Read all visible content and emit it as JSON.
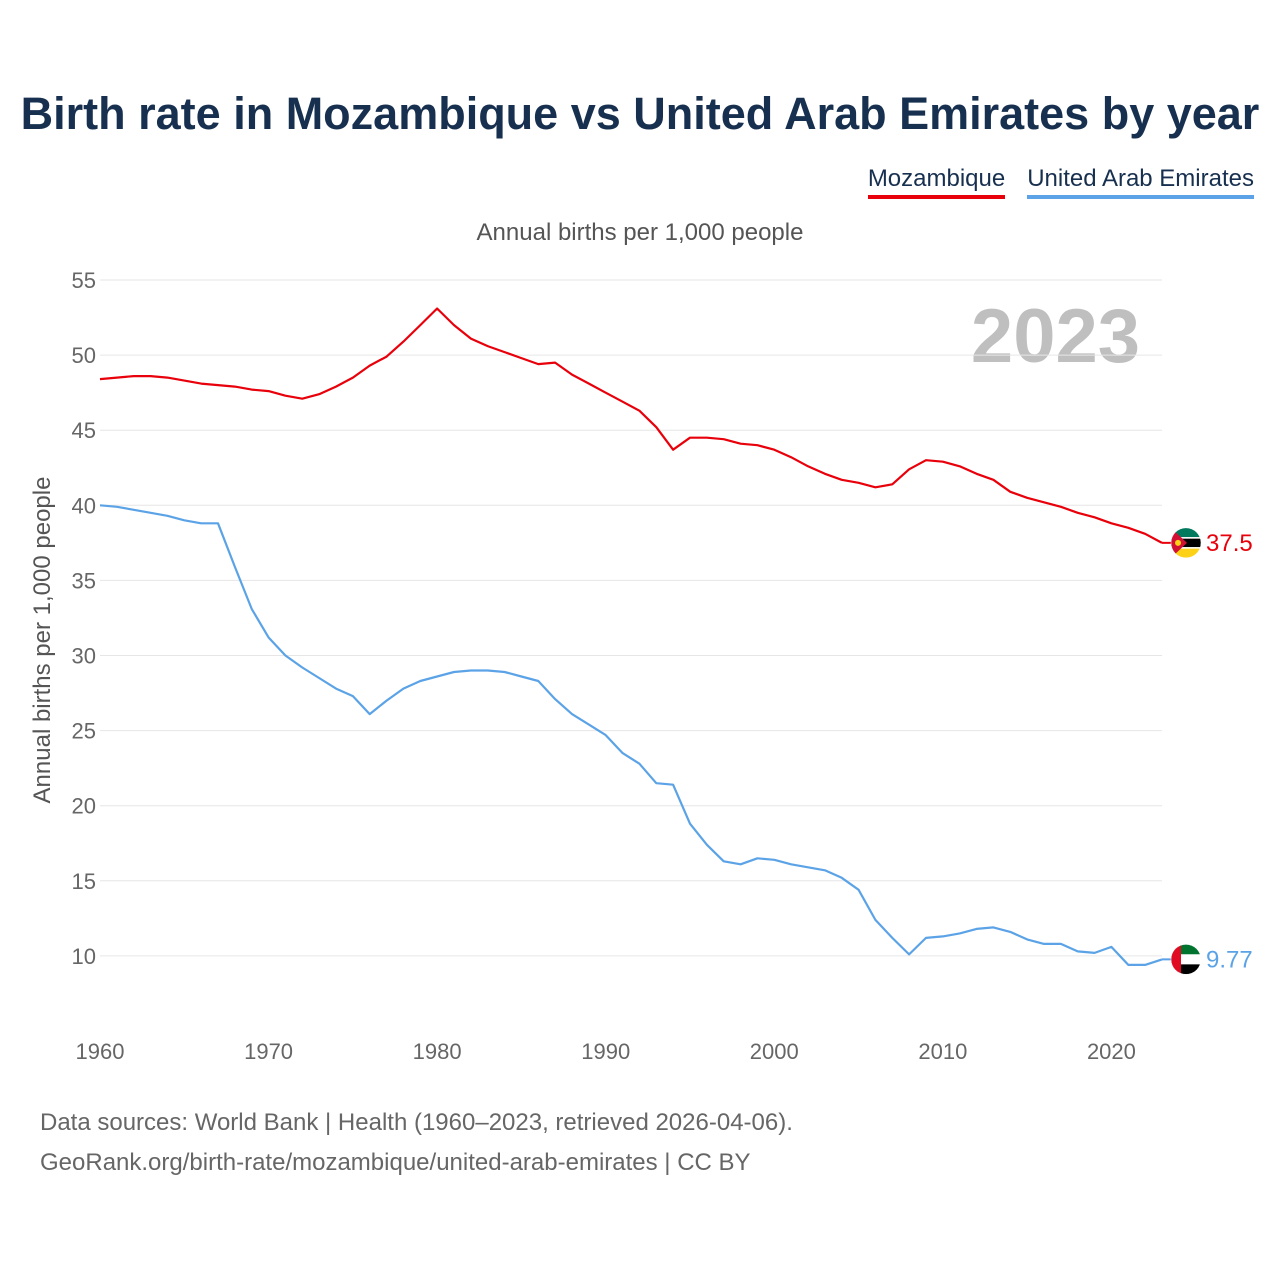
{
  "title": "Birth rate in Mozambique vs United Arab Emirates by year",
  "legend": [
    {
      "label": "Mozambique",
      "color": "#e8000b"
    },
    {
      "label": "United Arab Emirates",
      "color": "#5ba3e6"
    }
  ],
  "footer": {
    "line1": "Data sources: World Bank | Health (1960–2023, retrieved 2026-04-06).",
    "line2": "GeoRank.org/birth-rate/mozambique/united-arab-emirates | CC BY"
  },
  "chart_data": {
    "type": "line",
    "title": "Birth rate in Mozambique vs United Arab Emirates by year",
    "subtitle": "Annual births per 1,000 people",
    "ylabel": "Annual births per 1,000 people",
    "xlabel": "",
    "year_label": "2023",
    "xlim": [
      1960,
      2023
    ],
    "ylim": [
      5.6,
      55
    ],
    "yticks": [
      10,
      15,
      20,
      25,
      30,
      35,
      40,
      45,
      50,
      55
    ],
    "xticks": [
      1960,
      1970,
      1980,
      1990,
      2000,
      2010,
      2020
    ],
    "grid": true,
    "legend_position": "top-right",
    "x": [
      1960,
      1961,
      1962,
      1963,
      1964,
      1965,
      1966,
      1967,
      1968,
      1969,
      1970,
      1971,
      1972,
      1973,
      1974,
      1975,
      1976,
      1977,
      1978,
      1979,
      1980,
      1981,
      1982,
      1983,
      1984,
      1985,
      1986,
      1987,
      1988,
      1989,
      1990,
      1991,
      1992,
      1993,
      1994,
      1995,
      1996,
      1997,
      1998,
      1999,
      2000,
      2001,
      2002,
      2003,
      2004,
      2005,
      2006,
      2007,
      2008,
      2009,
      2010,
      2011,
      2012,
      2013,
      2014,
      2015,
      2016,
      2017,
      2018,
      2019,
      2020,
      2021,
      2022,
      2023
    ],
    "series": [
      {
        "name": "Mozambique",
        "color": "#e8000b",
        "end_label": "37.5",
        "values": [
          48.4,
          48.5,
          48.6,
          48.6,
          48.5,
          48.3,
          48.1,
          48.0,
          47.9,
          47.7,
          47.6,
          47.3,
          47.1,
          47.4,
          47.9,
          48.5,
          49.3,
          49.9,
          50.9,
          52.0,
          53.1,
          52.0,
          51.1,
          50.6,
          50.2,
          49.8,
          49.4,
          49.5,
          48.7,
          48.1,
          47.5,
          46.9,
          46.3,
          45.2,
          43.7,
          44.5,
          44.5,
          44.4,
          44.1,
          44.0,
          43.7,
          43.2,
          42.6,
          42.1,
          41.7,
          41.5,
          41.2,
          41.4,
          42.4,
          43.0,
          42.9,
          42.6,
          42.1,
          41.7,
          40.9,
          40.5,
          40.2,
          39.9,
          39.5,
          39.2,
          38.8,
          38.5,
          38.1,
          37.5
        ]
      },
      {
        "name": "United Arab Emirates",
        "color": "#5ba3e6",
        "end_label": "9.77",
        "values": [
          40.0,
          39.9,
          39.7,
          39.5,
          39.3,
          39.0,
          38.8,
          38.8,
          35.9,
          33.1,
          31.2,
          30.0,
          29.2,
          28.5,
          27.8,
          27.3,
          26.1,
          27.0,
          27.8,
          28.3,
          28.6,
          28.9,
          29.0,
          29.0,
          28.9,
          28.6,
          28.3,
          27.1,
          26.1,
          25.4,
          24.7,
          23.5,
          22.8,
          21.5,
          21.4,
          18.8,
          17.4,
          16.3,
          16.1,
          16.5,
          16.4,
          16.1,
          15.9,
          15.7,
          15.2,
          14.4,
          12.4,
          11.2,
          10.1,
          11.2,
          11.3,
          11.5,
          11.8,
          11.9,
          11.6,
          11.1,
          10.8,
          10.8,
          10.3,
          10.2,
          10.6,
          9.4,
          9.4,
          9.77
        ]
      }
    ]
  }
}
